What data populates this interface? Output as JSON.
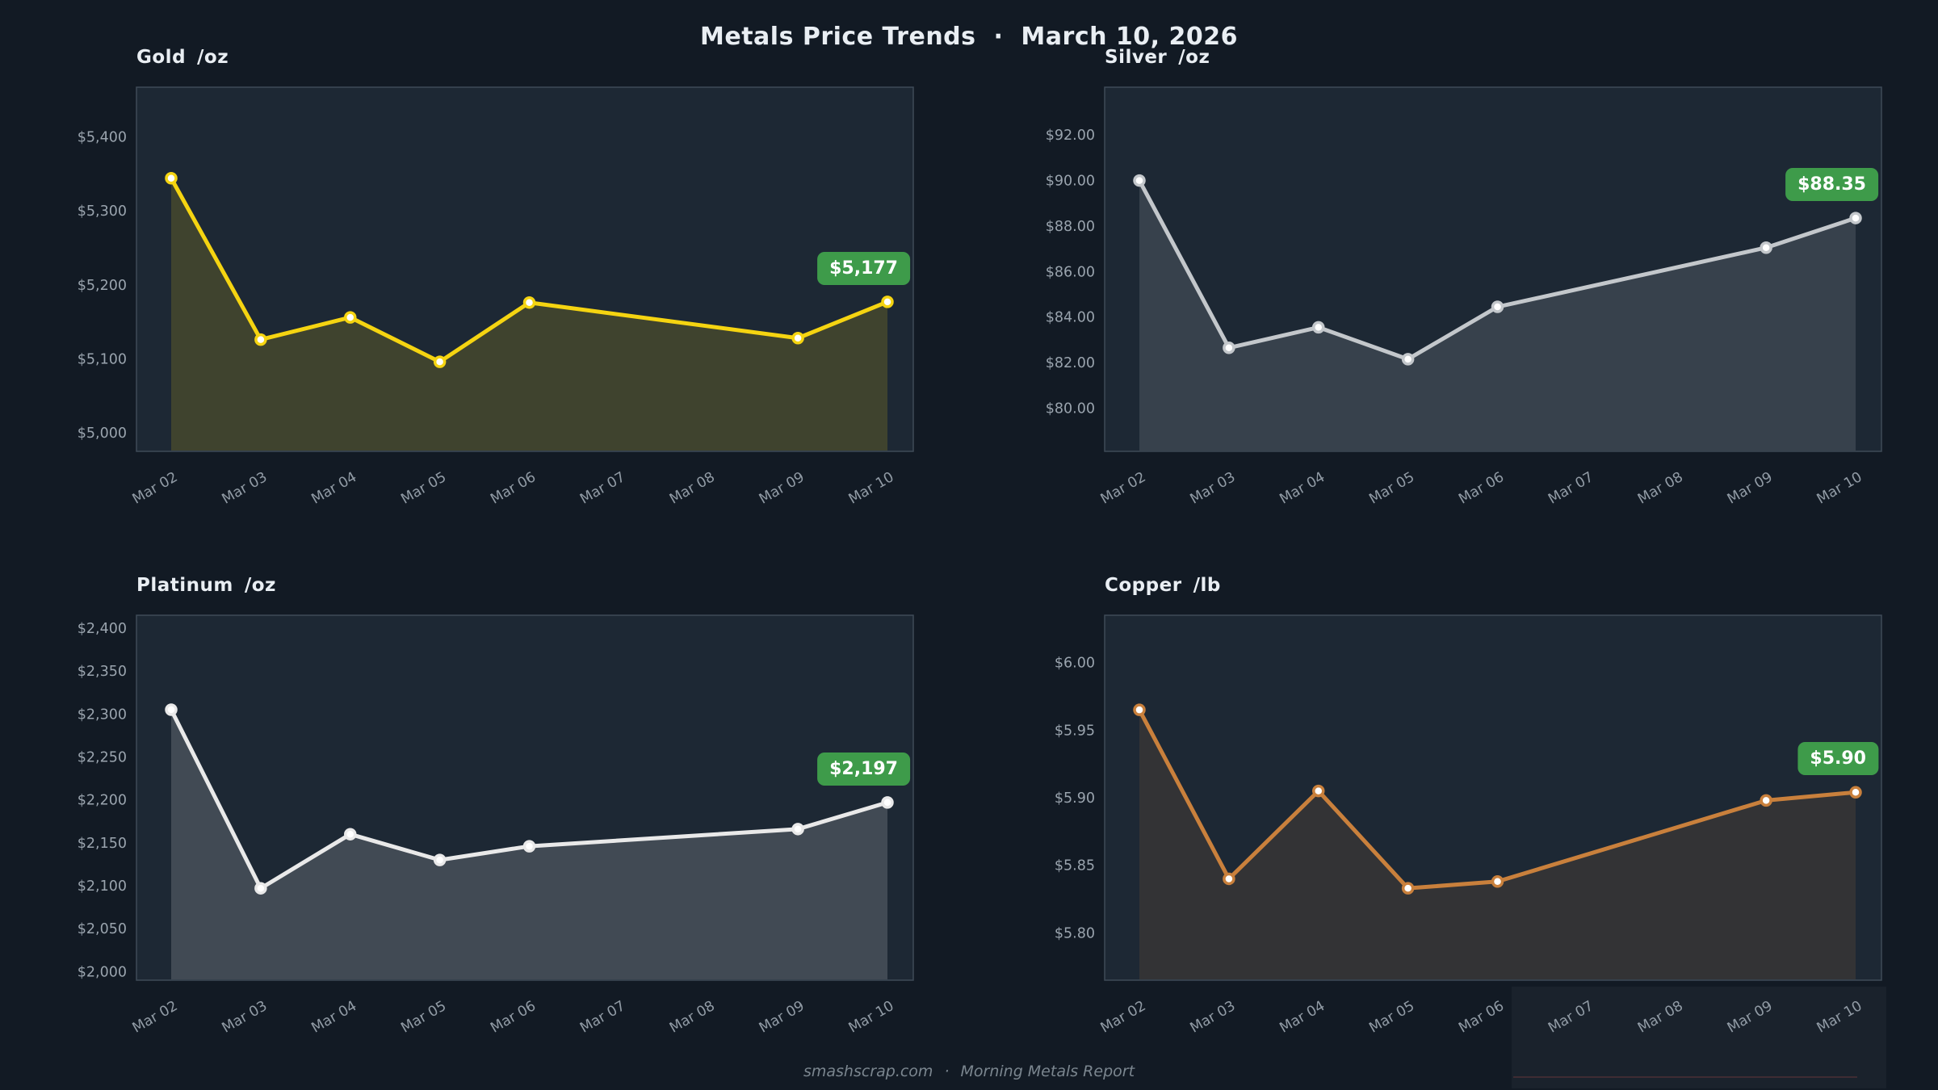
{
  "page": {
    "title": "Metals Price Trends",
    "title_separator": "·",
    "title_date": "March 10, 2026",
    "footer_site": "smashscrap.com",
    "footer_separator": "·",
    "footer_report": "Morning Metals Report"
  },
  "colors": {
    "page_bg": "#121a24",
    "plot_bg": "#1d2834",
    "spine": "#3e4a57",
    "ytick_label": "#9aa4ae",
    "xtick_label": "#919ba5",
    "title_text": "#e9eef3",
    "footer_text": "#7b868f",
    "badge_bg": "#3e9b4a",
    "badge_text": "#ffffff",
    "gold_line": "#f5d411",
    "silver_line": "#c3c7cb",
    "platinum_line": "#e9e9e9",
    "copper_line": "#c9803c"
  },
  "chart_data": [
    {
      "id": "gold",
      "type": "line",
      "title": "Gold",
      "unit": "/oz",
      "line_color": "#f5d411",
      "fill_color": "rgba(245,212,17,0.16)",
      "grid": false,
      "legend": false,
      "categories": [
        "Mar 02",
        "Mar 03",
        "Mar 04",
        "Mar 05",
        "Mar 06",
        "Mar 07",
        "Mar 08",
        "Mar 09",
        "Mar 10"
      ],
      "values": [
        5344,
        5126,
        5156,
        5096,
        5176,
        null,
        null,
        5128,
        5177
      ],
      "ydomain": [
        4975,
        5467
      ],
      "yticks": [
        5000,
        5100,
        5200,
        5300,
        5400
      ],
      "ytick_labels": [
        "$5,000",
        "$5,100",
        "$5,200",
        "$5,300",
        "$5,400"
      ],
      "annotation": "$5,177"
    },
    {
      "id": "silver",
      "type": "line",
      "title": "Silver",
      "unit": "/oz",
      "line_color": "#c3c7cb",
      "fill_color": "rgba(195,199,203,0.16)",
      "grid": false,
      "legend": false,
      "categories": [
        "Mar 02",
        "Mar 03",
        "Mar 04",
        "Mar 05",
        "Mar 06",
        "Mar 07",
        "Mar 08",
        "Mar 09",
        "Mar 10"
      ],
      "values": [
        90.0,
        82.65,
        83.55,
        82.15,
        84.45,
        null,
        null,
        87.05,
        88.35
      ],
      "ydomain": [
        78.1,
        94.1
      ],
      "yticks": [
        80,
        82,
        84,
        86,
        88,
        90,
        92
      ],
      "ytick_labels": [
        "$80.00",
        "$82.00",
        "$84.00",
        "$86.00",
        "$88.00",
        "$90.00",
        "$92.00"
      ],
      "annotation": "$88.35"
    },
    {
      "id": "platinum",
      "type": "line",
      "title": "Platinum",
      "unit": "/oz",
      "line_color": "#e9e9e9",
      "fill_color": "rgba(233,233,233,0.18)",
      "grid": false,
      "legend": false,
      "categories": [
        "Mar 02",
        "Mar 03",
        "Mar 04",
        "Mar 05",
        "Mar 06",
        "Mar 07",
        "Mar 08",
        "Mar 09",
        "Mar 10"
      ],
      "values": [
        2305,
        2097,
        2160,
        2130,
        2146,
        null,
        null,
        2166,
        2197
      ],
      "ydomain": [
        1990,
        2415
      ],
      "yticks": [
        2000,
        2050,
        2100,
        2150,
        2200,
        2250,
        2300,
        2350,
        2400
      ],
      "ytick_labels": [
        "$2,000",
        "$2,050",
        "$2,100",
        "$2,150",
        "$2,200",
        "$2,250",
        "$2,300",
        "$2,350",
        "$2,400"
      ],
      "annotation": "$2,197"
    },
    {
      "id": "copper",
      "type": "line",
      "title": "Copper",
      "unit": "/lb",
      "line_color": "#c9803c",
      "fill_color": "rgba(201,128,60,0.13)",
      "grid": false,
      "legend": false,
      "categories": [
        "Mar 02",
        "Mar 03",
        "Mar 04",
        "Mar 05",
        "Mar 06",
        "Mar 07",
        "Mar 08",
        "Mar 09",
        "Mar 10"
      ],
      "values": [
        5.965,
        5.84,
        5.905,
        5.833,
        5.838,
        null,
        null,
        5.898,
        5.904
      ],
      "ydomain": [
        5.765,
        6.035
      ],
      "yticks": [
        5.8,
        5.85,
        5.9,
        5.95,
        6.0
      ],
      "ytick_labels": [
        "$5.80",
        "$5.85",
        "$5.90",
        "$5.95",
        "$6.00"
      ],
      "annotation": "$5.90"
    }
  ]
}
